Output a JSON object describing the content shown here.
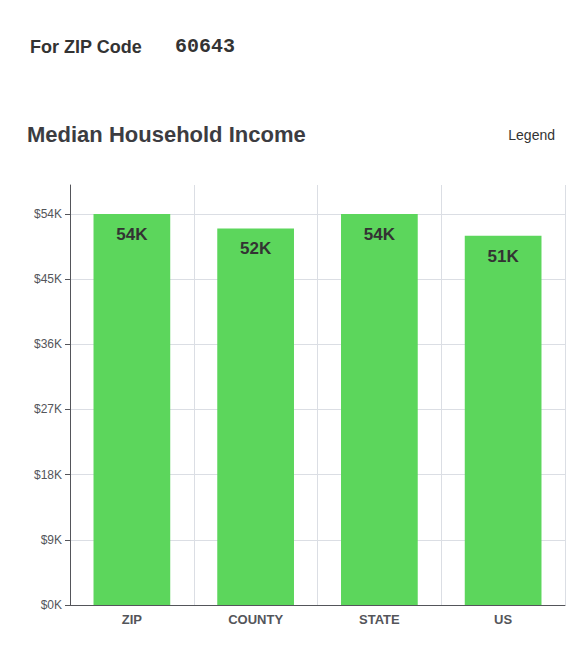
{
  "chart_data": {
    "type": "bar",
    "title": "Median Household Income",
    "annotations": [
      "For ZIP Code",
      "60643",
      "Legend"
    ],
    "categories": [
      "ZIP",
      "COUNTY",
      "STATE",
      "US"
    ],
    "values": [
      54000,
      52000,
      54000,
      51000
    ],
    "value_labels": [
      "54K",
      "52K",
      "54K",
      "51K"
    ],
    "data_labels": true,
    "color": "#5cd65c",
    "ylim": [
      0,
      58000
    ],
    "yticks": [
      {
        "value": 0,
        "label": "$0K"
      },
      {
        "value": 9000,
        "label": "$9K"
      },
      {
        "value": 18000,
        "label": "$18K"
      },
      {
        "value": 27000,
        "label": "$27K"
      },
      {
        "value": 36000,
        "label": "$36K"
      },
      {
        "value": 45000,
        "label": "$45K"
      },
      {
        "value": 54000,
        "label": "$54K"
      }
    ],
    "grid": true
  }
}
